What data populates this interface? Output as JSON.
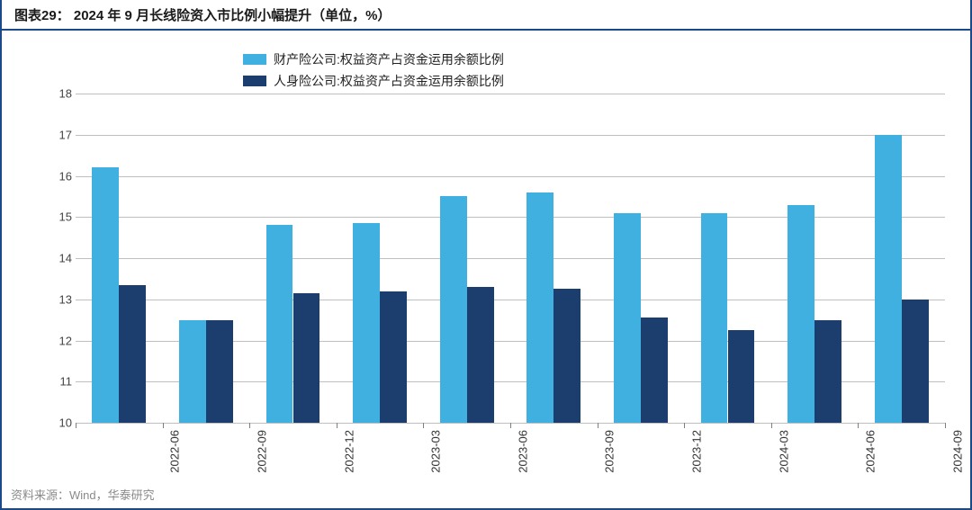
{
  "title": "图表29： 2024 年 9 月长线险资入市比例小幅提升（单位，%）",
  "source": "资料来源：Wind，华泰研究",
  "chart": {
    "type": "bar",
    "ylim": [
      10,
      18
    ],
    "ytick_step": 1,
    "yticks": [
      10,
      11,
      12,
      13,
      14,
      15,
      16,
      17,
      18
    ],
    "grid_color": "#bfbfbf",
    "background_color": "#ffffff",
    "label_fontsize": 13,
    "title_fontsize": 15,
    "legend_fontsize": 14,
    "bar_group_width": 0.62,
    "categories": [
      "2022-06",
      "2022-09",
      "2022-12",
      "2023-03",
      "2023-06",
      "2023-09",
      "2023-12",
      "2024-03",
      "2024-06",
      "2024-09"
    ],
    "series": [
      {
        "name": "财产险公司:权益资产占资金运用余额比例",
        "color": "#40b0e0",
        "values": [
          16.2,
          12.5,
          14.8,
          14.85,
          15.5,
          15.6,
          15.1,
          15.1,
          15.3,
          17.0
        ]
      },
      {
        "name": "人身险公司:权益资产占资金运用余额比例",
        "color": "#1b3e6f",
        "values": [
          13.35,
          12.5,
          13.15,
          13.2,
          13.3,
          13.25,
          12.55,
          12.25,
          12.5,
          13.0
        ]
      }
    ]
  }
}
